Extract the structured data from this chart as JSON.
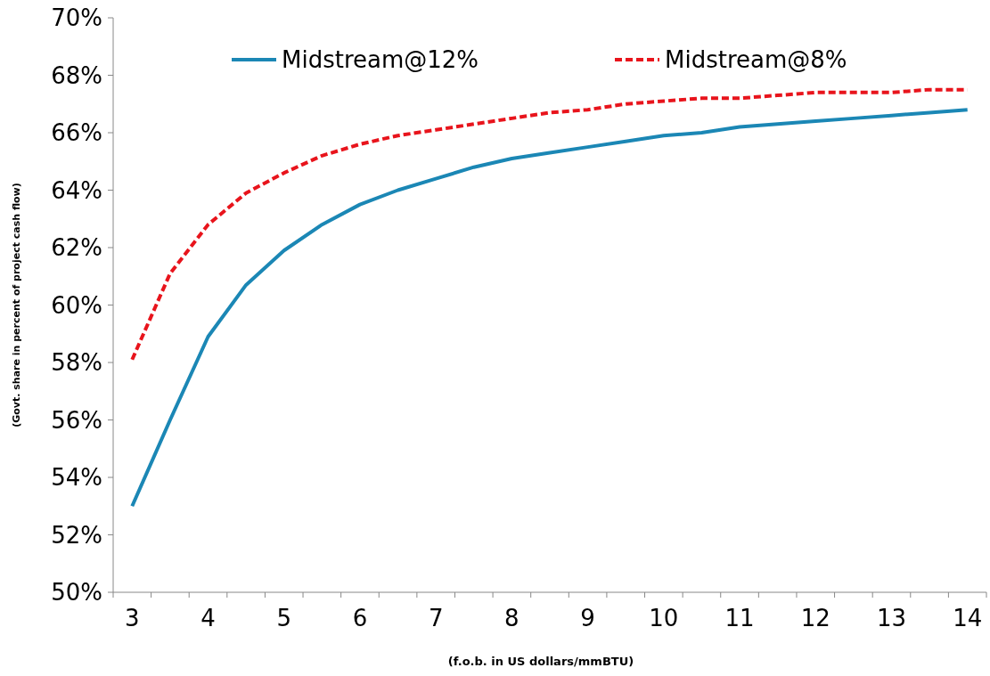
{
  "chart_data": {
    "type": "line",
    "xlabel": "(f.o.b. in US dollars/mmBTU)",
    "ylabel": "(Govt. share in percent of project  cash flow)",
    "categories": [
      "3",
      null,
      "4",
      null,
      "5",
      null,
      "6",
      null,
      "7",
      null,
      "8",
      null,
      "9",
      null,
      "10",
      null,
      "11",
      null,
      "12",
      null,
      "13",
      null,
      "14"
    ],
    "ylim": [
      50,
      70
    ],
    "yticks": [
      {
        "value": 50,
        "label": "50%"
      },
      {
        "value": 52,
        "label": "52%"
      },
      {
        "value": 54,
        "label": "54%"
      },
      {
        "value": 56,
        "label": "56%"
      },
      {
        "value": 58,
        "label": "58%"
      },
      {
        "value": 60,
        "label": "60%"
      },
      {
        "value": 62,
        "label": "62%"
      },
      {
        "value": 64,
        "label": "64%"
      },
      {
        "value": 66,
        "label": "66%"
      },
      {
        "value": 68,
        "label": "68%"
      },
      {
        "value": 70,
        "label": "70%"
      }
    ],
    "series": [
      {
        "name": "Midstream@12%",
        "color": "#1b87b5",
        "line_style": "solid",
        "values": [
          53.0,
          56.0,
          58.9,
          60.7,
          61.9,
          62.8,
          63.5,
          64.0,
          64.4,
          64.8,
          65.1,
          65.3,
          65.5,
          65.7,
          65.9,
          66.0,
          66.2,
          66.3,
          66.4,
          66.5,
          66.6,
          66.7,
          66.8
        ]
      },
      {
        "name": "Midstream@8%",
        "color": "#e8141c",
        "line_style": "dashed",
        "values": [
          58.1,
          61.1,
          62.8,
          63.9,
          64.6,
          65.2,
          65.6,
          65.9,
          66.1,
          66.3,
          66.5,
          66.7,
          66.8,
          67.0,
          67.1,
          67.2,
          67.2,
          67.3,
          67.4,
          67.4,
          67.4,
          67.5,
          67.5
        ]
      }
    ],
    "legend": "top",
    "grid": false
  }
}
